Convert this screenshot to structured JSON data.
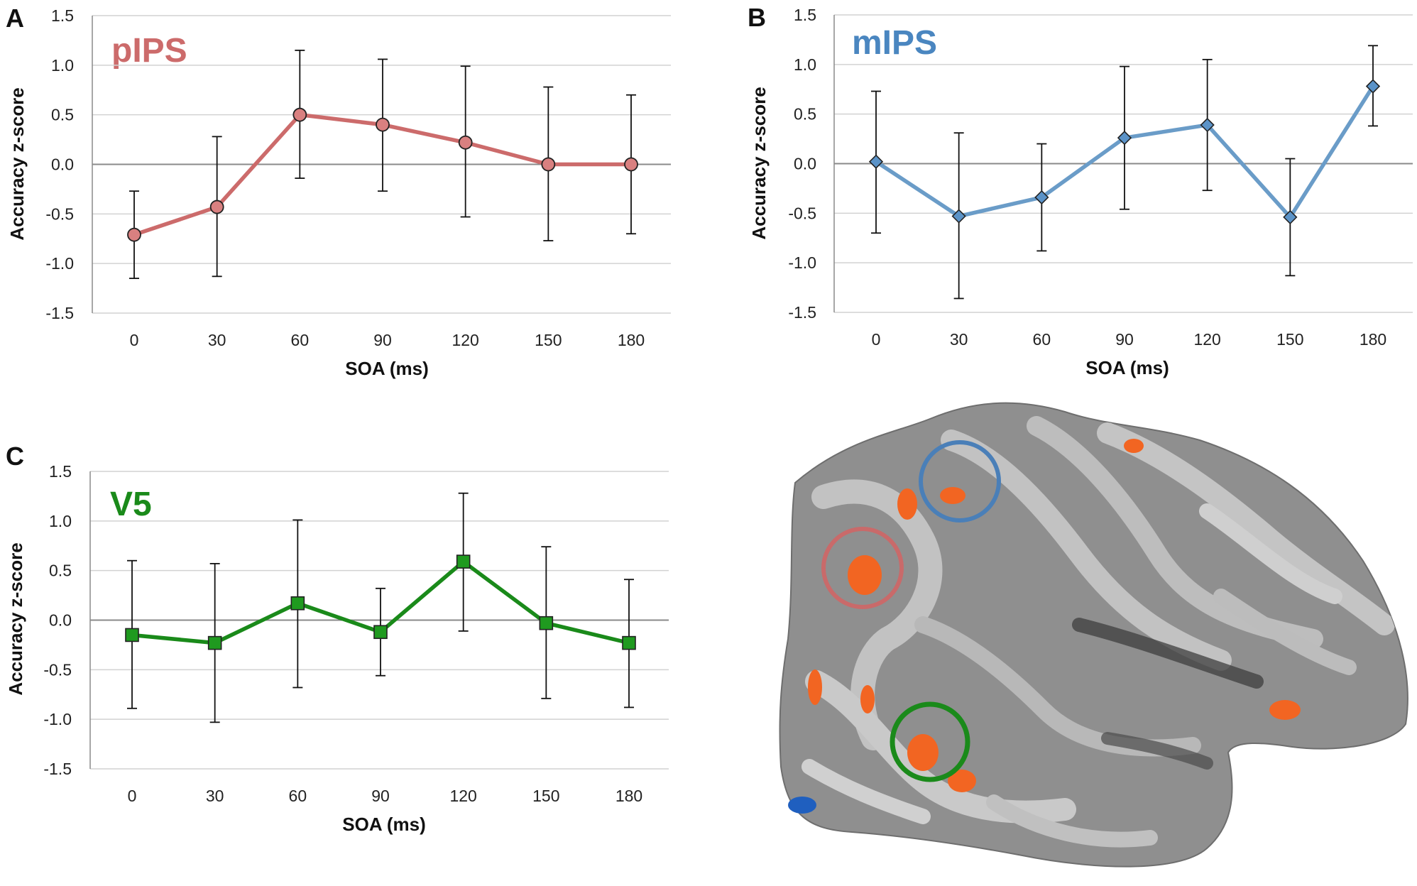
{
  "panels": [
    {
      "letter": "A",
      "region_label": "pIPS",
      "color": "#cc6b6b",
      "fill": "#d98080",
      "marker": "circle",
      "chart_data": {
        "type": "line",
        "title": "pIPS",
        "xlabel": "SOA (ms)",
        "ylabel": "Accuracy z-score",
        "x": [
          0,
          30,
          60,
          90,
          120,
          150,
          180
        ],
        "categories": [
          "0",
          "30",
          "60",
          "90",
          "120",
          "150",
          "180"
        ],
        "yticks": [
          "1.5",
          "1.0",
          "0.5",
          "0.0",
          "-0.5",
          "-1.0",
          "-1.5"
        ],
        "ylim": [
          -1.5,
          1.5
        ],
        "grid": true,
        "series": [
          {
            "name": "pIPS",
            "values": [
              -0.71,
              -0.43,
              0.5,
              0.4,
              0.22,
              0.0,
              0.0
            ],
            "err_low": [
              -1.15,
              -1.13,
              -0.14,
              -0.27,
              -0.53,
              -0.77,
              -0.7
            ],
            "err_high": [
              -0.27,
              0.28,
              1.15,
              1.06,
              0.99,
              0.78,
              0.7
            ]
          }
        ]
      }
    },
    {
      "letter": "B",
      "region_label": "mIPS",
      "color": "#6a9cc8",
      "fill": "#5b93c8",
      "marker": "diamond",
      "chart_data": {
        "type": "line",
        "title": "mIPS",
        "xlabel": "SOA (ms)",
        "ylabel": "Accuracy z-score",
        "x": [
          0,
          30,
          60,
          90,
          120,
          150,
          180
        ],
        "categories": [
          "0",
          "30",
          "60",
          "90",
          "120",
          "150",
          "180"
        ],
        "yticks": [
          "1.5",
          "1.0",
          "0.5",
          "0.0",
          "-0.5",
          "-1.0",
          "-1.5"
        ],
        "ylim": [
          -1.5,
          1.5
        ],
        "grid": true,
        "series": [
          {
            "name": "mIPS",
            "values": [
              0.02,
              -0.53,
              -0.34,
              0.26,
              0.39,
              -0.54,
              0.78
            ],
            "err_low": [
              -0.7,
              -1.36,
              -0.88,
              -0.46,
              -0.27,
              -1.13,
              0.38
            ],
            "err_high": [
              0.73,
              0.31,
              0.2,
              0.98,
              1.05,
              0.05,
              1.19
            ]
          }
        ]
      }
    },
    {
      "letter": "C",
      "region_label": "V5",
      "color": "#1a8a1a",
      "fill": "#1f9a1f",
      "marker": "square",
      "chart_data": {
        "type": "line",
        "title": "V5",
        "xlabel": "SOA (ms)",
        "ylabel": "Accuracy z-score",
        "x": [
          0,
          30,
          60,
          90,
          120,
          150,
          180
        ],
        "categories": [
          "0",
          "30",
          "60",
          "90",
          "120",
          "150",
          "180"
        ],
        "yticks": [
          "1.5",
          "1.0",
          "0.5",
          "0.0",
          "-0.5",
          "-1.0",
          "-1.5"
        ],
        "ylim": [
          -1.5,
          1.5
        ],
        "grid": true,
        "series": [
          {
            "name": "V5",
            "values": [
              -0.15,
              -0.23,
              0.17,
              -0.12,
              0.59,
              -0.03,
              -0.23
            ],
            "err_low": [
              -0.89,
              -1.03,
              -0.68,
              -0.56,
              -0.11,
              -0.79,
              -0.88
            ],
            "err_high": [
              0.6,
              0.57,
              1.01,
              0.32,
              1.28,
              0.74,
              0.41
            ]
          }
        ]
      }
    }
  ],
  "brain": {
    "description_icon": "brain-surface-icon",
    "roi_markers": [
      {
        "name": "mIPS",
        "color": "#4a7fb8"
      },
      {
        "name": "pIPS",
        "color": "#c96a6a"
      },
      {
        "name": "V5",
        "color": "#1a8a1a"
      }
    ],
    "activation_color": "#f26522",
    "deactivation_color": "#1f5fbf"
  }
}
